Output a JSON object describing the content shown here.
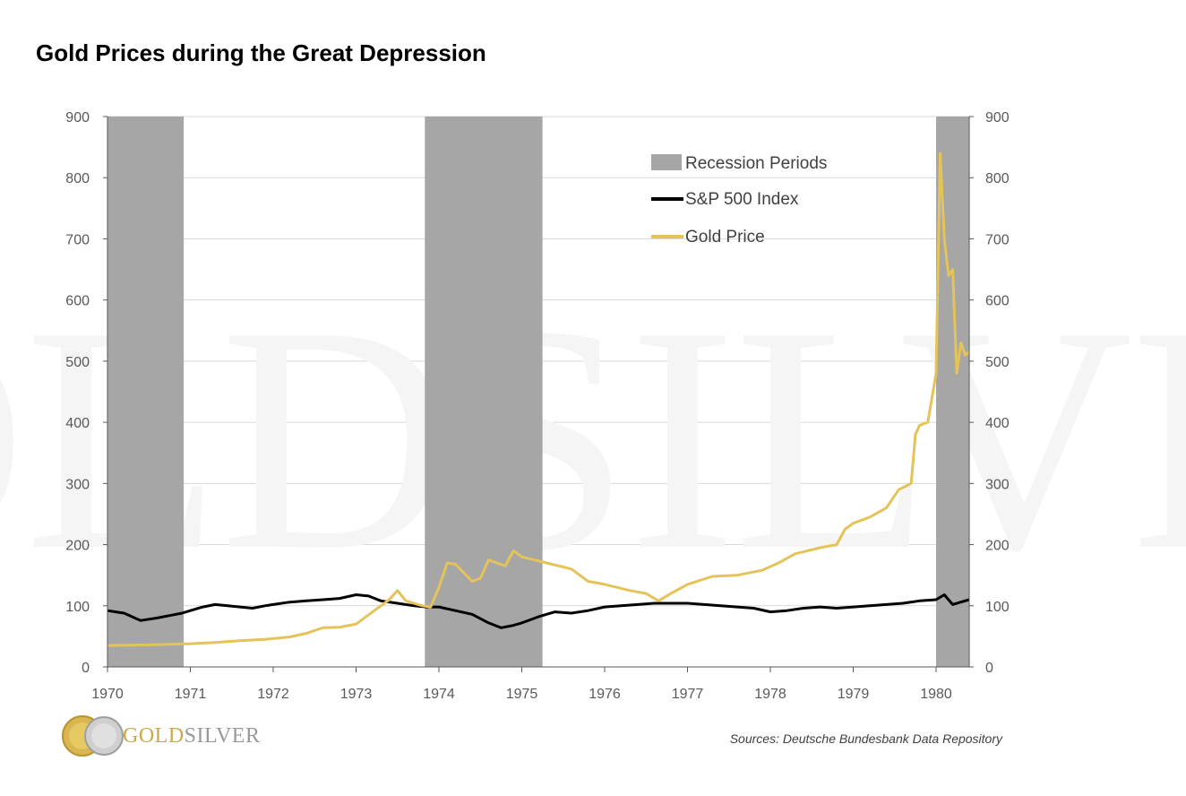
{
  "header": {
    "title": "Gold Prices during the Great Depression"
  },
  "footer": {
    "source": "Sources: Deutsche Bundesbank Data Repository",
    "logo_gold": "GOLD",
    "logo_silver": "SILVER"
  },
  "watermark": "GOLDSILVER",
  "colors": {
    "recession": "#a6a6a6",
    "sp500": "#000000",
    "gold": "#e3c35a",
    "grid": "#d9d9d9",
    "axis": "#595959"
  },
  "chart_data": {
    "type": "line",
    "title": "Gold Prices during the Great Depression",
    "xlim": [
      1970,
      1980.4
    ],
    "ylim": [
      0,
      900
    ],
    "y_ticks": [
      "0",
      "100",
      "200",
      "300",
      "400",
      "500",
      "600",
      "700",
      "800",
      "900"
    ],
    "x_ticks": [
      "1970",
      "1971",
      "1972",
      "1973",
      "1974",
      "1975",
      "1976",
      "1977",
      "1978",
      "1979",
      "1980"
    ],
    "secondary_y_ticks": [
      "0",
      "100",
      "200",
      "300",
      "400",
      "500",
      "600",
      "700",
      "800",
      "900"
    ],
    "grid": true,
    "legend_position": "top-right",
    "recession_periods": {
      "name": "Recession Periods",
      "ranges": [
        [
          1970.0,
          1970.92
        ],
        [
          1973.83,
          1975.25
        ],
        [
          1980.0,
          1980.5
        ]
      ]
    },
    "series": [
      {
        "name": "S&P 500 Index",
        "x": [
          1970.0,
          1970.1,
          1970.2,
          1970.3,
          1970.4,
          1970.5,
          1970.6,
          1970.75,
          1970.9,
          1971.0,
          1971.15,
          1971.3,
          1971.45,
          1971.6,
          1971.75,
          1971.9,
          1972.0,
          1972.2,
          1972.4,
          1972.6,
          1972.8,
          1973.0,
          1973.15,
          1973.3,
          1973.5,
          1973.7,
          1973.85,
          1974.0,
          1974.2,
          1974.4,
          1974.6,
          1974.75,
          1974.9,
          1975.0,
          1975.2,
          1975.4,
          1975.6,
          1975.8,
          1976.0,
          1976.2,
          1976.4,
          1976.6,
          1976.8,
          1977.0,
          1977.2,
          1977.4,
          1977.6,
          1977.8,
          1978.0,
          1978.2,
          1978.4,
          1978.6,
          1978.8,
          1979.0,
          1979.2,
          1979.4,
          1979.6,
          1979.8,
          1980.0,
          1980.1,
          1980.2,
          1980.3,
          1980.4
        ],
        "y": [
          92,
          90,
          88,
          82,
          76,
          78,
          80,
          84,
          88,
          92,
          98,
          102,
          100,
          98,
          96,
          100,
          102,
          106,
          108,
          110,
          112,
          118,
          116,
          108,
          104,
          100,
          98,
          98,
          92,
          86,
          72,
          64,
          68,
          72,
          82,
          90,
          88,
          92,
          98,
          100,
          102,
          104,
          104,
          104,
          102,
          100,
          98,
          96,
          90,
          92,
          96,
          98,
          96,
          98,
          100,
          102,
          104,
          108,
          110,
          118,
          102,
          106,
          110
        ]
      },
      {
        "name": "Gold Price",
        "x": [
          1970.0,
          1970.5,
          1971.0,
          1971.3,
          1971.6,
          1971.9,
          1972.2,
          1972.4,
          1972.6,
          1972.8,
          1973.0,
          1973.2,
          1973.4,
          1973.5,
          1973.6,
          1973.8,
          1973.9,
          1974.0,
          1974.1,
          1974.2,
          1974.4,
          1974.5,
          1974.6,
          1974.8,
          1974.9,
          1975.0,
          1975.3,
          1975.6,
          1975.8,
          1976.0,
          1976.3,
          1976.5,
          1976.65,
          1976.8,
          1977.0,
          1977.3,
          1977.6,
          1977.9,
          1978.1,
          1978.3,
          1978.6,
          1978.8,
          1978.9,
          1979.0,
          1979.2,
          1979.4,
          1979.55,
          1979.7,
          1979.75,
          1979.8,
          1979.9,
          1980.0,
          1980.05,
          1980.1,
          1980.15,
          1980.2,
          1980.25,
          1980.3,
          1980.35,
          1980.4
        ],
        "y": [
          35,
          36,
          38,
          40,
          43,
          45,
          49,
          55,
          64,
          65,
          70,
          90,
          110,
          125,
          108,
          100,
          98,
          130,
          170,
          168,
          140,
          145,
          175,
          165,
          190,
          180,
          170,
          160,
          140,
          135,
          125,
          120,
          108,
          120,
          135,
          148,
          150,
          158,
          170,
          185,
          195,
          200,
          225,
          235,
          245,
          260,
          290,
          300,
          380,
          395,
          400,
          480,
          840,
          700,
          640,
          650,
          480,
          530,
          510,
          515
        ]
      }
    ]
  }
}
